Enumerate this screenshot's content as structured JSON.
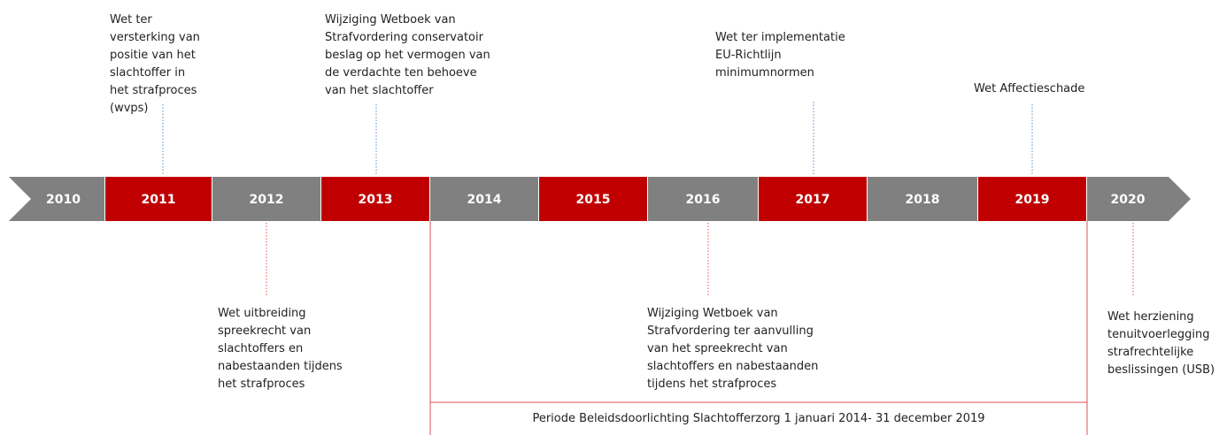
{
  "years": [
    "2010",
    "2011",
    "2012",
    "2013",
    "2014",
    "2015",
    "2016",
    "2017",
    "2018",
    "2019",
    "2020"
  ],
  "events_above": [
    {
      "lines": [
        "Wet ter",
        "versterking van",
        "positie van het",
        "slachtoffer in",
        "het strafproces",
        "(wvps)"
      ]
    },
    {
      "lines": [
        "Wijziging Wetboek van",
        "Strafvordering conservatoir",
        "beslag op het vermogen van",
        "de verdachte ten behoeve",
        "van het slachtoffer"
      ]
    },
    {
      "lines": [
        "Wet ter implementatie",
        "EU-Richtlijn",
        "minimumnormen"
      ]
    },
    {
      "lines": [
        "Wet Affectieschade"
      ]
    }
  ],
  "events_below": [
    {
      "lines": [
        "Wet uitbreiding",
        "spreekrecht van",
        "slachtoffers en",
        "nabestaanden tijdens",
        "het strafproces"
      ]
    },
    {
      "lines": [
        "Wijziging Wetboek van",
        "Strafvordering ter aanvulling",
        "van het spreekrecht van",
        "slachtoffers en nabestaanden",
        "tijdens het strafproces"
      ]
    },
    {
      "lines": [
        "Wet herziening",
        "tenuitvoerlegging",
        "strafrechtelijke",
        "beslissingen (USB)"
      ]
    }
  ],
  "period_label": "Periode Beleidsdoorlichting Slachtofferzorg 1 januari 2014- 31 december 2019"
}
